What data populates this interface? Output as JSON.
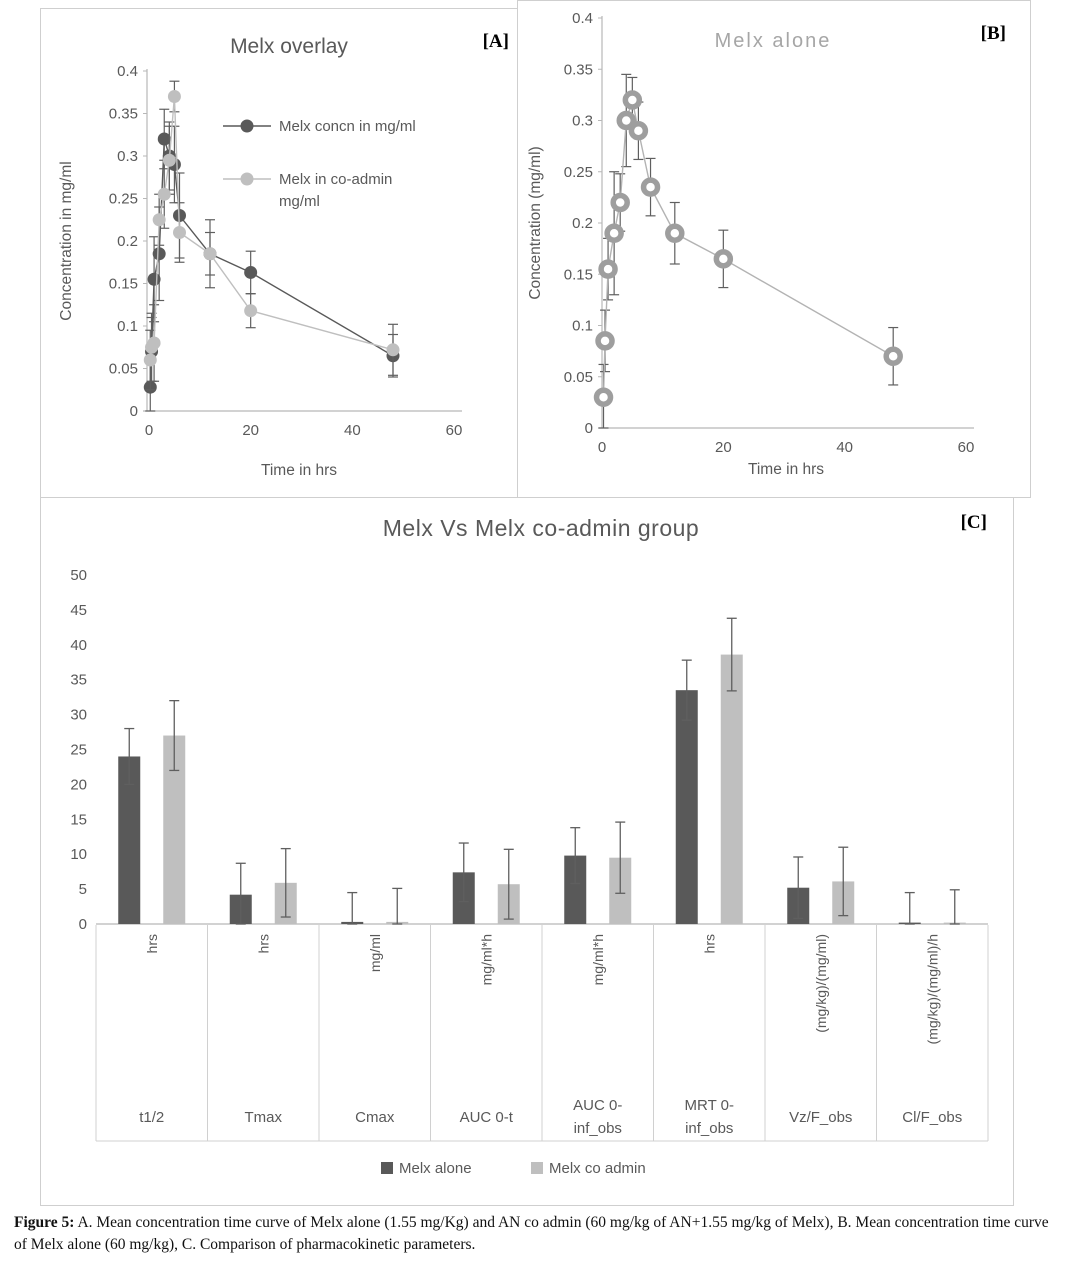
{
  "panel_tags": {
    "a": "[A]",
    "b": "[B]",
    "c": "[C]"
  },
  "caption": {
    "label": "Figure 5:",
    "text": " A. Mean concentration time curve of Melx alone (1.55 mg/Kg) and AN co admin (60 mg/kg of AN+1.55 mg/kg of Melx), B. Mean concentration time curve of Melx alone (60 mg/kg), C. Comparison of pharmacokinetic parameters."
  },
  "colors": {
    "dark_series": "#595959",
    "light_series": "#bfbfbf",
    "ring_marker": "#9e9e9e",
    "error_bar": "#5f5f5f",
    "axis_line": "#b7b7b7",
    "table_line": "#d0d0d0",
    "tick_text": "#595959",
    "panel_border": "#cfcfcf",
    "title_b": "#a6a6a6"
  },
  "chart_data": [
    {
      "id": "melx-overlay",
      "type": "line",
      "title": "Melx overlay",
      "xlabel": "Time in hrs",
      "ylabel": "Concentration in mg/ml",
      "xlim": [
        0,
        60
      ],
      "ylim": [
        0,
        0.4
      ],
      "xticks": [
        0,
        20,
        40,
        60
      ],
      "xtick_labels": [
        "0",
        "20",
        "40",
        "60"
      ],
      "yticks": [
        0,
        0.05,
        0.1,
        0.15,
        0.2,
        0.25,
        0.3,
        0.35,
        0.4
      ],
      "ytick_labels": [
        "0",
        "0.05",
        "0.1",
        "0.15",
        "0.2",
        "0.25",
        "0.3",
        "0.35",
        "0.4"
      ],
      "grid": false,
      "legend_position": "inside-right",
      "x": [
        0.25,
        0.5,
        1,
        2,
        3,
        4,
        5,
        6,
        12,
        20,
        48
      ],
      "series": [
        {
          "name": "Melx concn in mg/ml",
          "label_lines": [
            "Melx concn in mg/ml"
          ],
          "color": "#595959",
          "marker": "filled",
          "values": [
            0.028,
            0.07,
            0.155,
            0.185,
            0.32,
            0.3,
            0.29,
            0.23,
            0.185,
            0.163,
            0.065
          ],
          "errors": [
            0.03,
            0.04,
            0.05,
            0.055,
            0.035,
            0.04,
            0.045,
            0.05,
            0.04,
            0.025,
            0.025
          ]
        },
        {
          "name": "Melx in co-admin mg/ml",
          "label_lines": [
            "Melx in co-admin",
            "mg/ml"
          ],
          "color": "#bfbfbf",
          "marker": "filled",
          "values": [
            0.06,
            0.075,
            0.08,
            0.225,
            0.255,
            0.295,
            0.37,
            0.21,
            0.185,
            0.118,
            0.072
          ],
          "errors": [
            0.035,
            0.04,
            0.045,
            0.03,
            0.04,
            0.04,
            0.018,
            0.035,
            0.025,
            0.02,
            0.03
          ]
        }
      ]
    },
    {
      "id": "melx-alone",
      "type": "line",
      "title": "Melx alone",
      "xlabel": "Time in hrs",
      "ylabel": "Concentration (mg/ml)",
      "xlim": [
        0,
        60
      ],
      "ylim": [
        0,
        0.4
      ],
      "xticks": [
        0,
        20,
        40,
        60
      ],
      "xtick_labels": [
        "0",
        "20",
        "40",
        "60"
      ],
      "yticks": [
        0,
        0.05,
        0.1,
        0.15,
        0.2,
        0.25,
        0.3,
        0.35,
        0.4
      ],
      "ytick_labels": [
        "0",
        "0.05",
        "0.1",
        "0.15",
        "0.2",
        "0.25",
        "0.3",
        "0.35",
        "0.4"
      ],
      "grid": false,
      "legend_position": "none",
      "x": [
        0.25,
        0.5,
        1,
        2,
        3,
        4,
        5,
        6,
        8,
        12,
        20,
        48
      ],
      "series": [
        {
          "name": "Melx alone",
          "label_lines": [
            "Melx alone"
          ],
          "color": "#9e9e9e",
          "line_color": "#b3b3b3",
          "marker": "ring",
          "values": [
            0.03,
            0.085,
            0.155,
            0.19,
            0.22,
            0.3,
            0.32,
            0.29,
            0.235,
            0.19,
            0.165,
            0.07
          ],
          "errors": [
            0.032,
            0.03,
            0.03,
            0.06,
            0.028,
            0.045,
            0.022,
            0.028,
            0.028,
            0.03,
            0.028,
            0.028
          ]
        }
      ]
    },
    {
      "id": "pk-comparison",
      "type": "bar",
      "title": "Melx Vs Melx co-admin group",
      "ylim": [
        0,
        50
      ],
      "yticks": [
        0,
        5,
        10,
        15,
        20,
        25,
        30,
        35,
        40,
        45,
        50
      ],
      "ytick_labels": [
        "0",
        "5",
        "10",
        "15",
        "20",
        "25",
        "30",
        "35",
        "40",
        "45",
        "50"
      ],
      "grid": false,
      "legend_position": "bottom",
      "categories": [
        "t1/2",
        "Tmax",
        "Cmax",
        "AUC 0-t",
        "AUC 0-inf_obs",
        "MRT 0-inf_obs",
        "Vz/F_obs",
        "Cl/F_obs"
      ],
      "category_label_lines": [
        [
          "t1/2"
        ],
        [
          "Tmax"
        ],
        [
          "Cmax"
        ],
        [
          "AUC 0-t"
        ],
        [
          "AUC 0-",
          "inf_obs"
        ],
        [
          "MRT 0-",
          "inf_obs"
        ],
        [
          "Vz/F_obs"
        ],
        [
          "Cl/F_obs"
        ]
      ],
      "category_units": [
        "hrs",
        "hrs",
        "mg/ml",
        "mg/ml*h",
        "mg/ml*h",
        "hrs",
        "(mg/kg)/(mg/ml)",
        "(mg/kg)/(mg/ml)/h"
      ],
      "series": [
        {
          "name": "Melx alone",
          "color": "#595959",
          "values": [
            24,
            4.2,
            0.3,
            7.4,
            9.8,
            33.5,
            5.2,
            0.2
          ],
          "errors": [
            4,
            4.5,
            4.2,
            4.2,
            4,
            4.3,
            4.4,
            4.3
          ]
        },
        {
          "name": "Melx co admin",
          "color": "#bfbfbf",
          "values": [
            27,
            5.9,
            0.3,
            5.7,
            9.5,
            38.6,
            6.1,
            0.2
          ],
          "errors": [
            5,
            4.9,
            4.8,
            5,
            5.1,
            5.2,
            4.9,
            4.7
          ]
        }
      ]
    }
  ]
}
